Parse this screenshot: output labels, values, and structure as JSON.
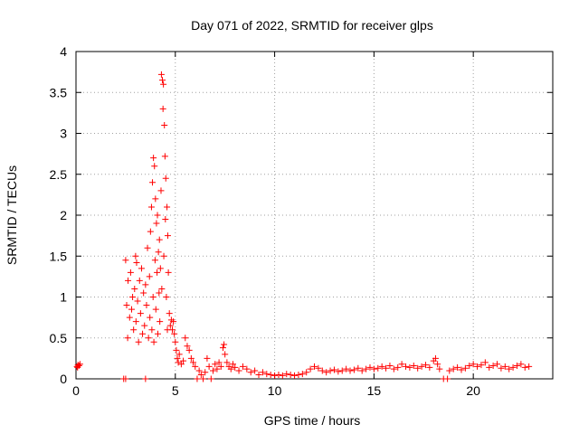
{
  "chart_data": {
    "type": "scatter",
    "title": "Day 071 of 2022, SRMTID for receiver glps",
    "xlabel": "GPS time / hours",
    "ylabel": "SRMTID / TECUs",
    "xlim": [
      0,
      24
    ],
    "ylim": [
      0,
      4
    ],
    "x_ticks": [
      0,
      5,
      10,
      15,
      20
    ],
    "x_tick_labels": [
      "0",
      "5",
      "10",
      "15",
      "20"
    ],
    "y_ticks": [
      0,
      0.5,
      1,
      1.5,
      2,
      2.5,
      3,
      3.5,
      4
    ],
    "y_tick_labels": [
      "0",
      "0.5",
      "1",
      "1.5",
      "2",
      "2.5",
      "3",
      "3.5",
      "4"
    ],
    "grid": true,
    "marker": "+",
    "color": "#ff0000",
    "series": [
      {
        "name": "SRMTID",
        "points": [
          [
            0.05,
            0.15
          ],
          [
            0.1,
            0.17
          ],
          [
            0.15,
            0.16
          ],
          [
            0.2,
            0.18
          ],
          [
            0.08,
            0.14
          ],
          [
            2.4,
            0.0
          ],
          [
            2.5,
            0.0
          ],
          [
            2.5,
            1.45
          ],
          [
            2.55,
            0.9
          ],
          [
            2.6,
            0.5
          ],
          [
            2.62,
            1.2
          ],
          [
            2.7,
            0.75
          ],
          [
            2.75,
            1.3
          ],
          [
            2.8,
            0.85
          ],
          [
            2.85,
            1.0
          ],
          [
            2.9,
            0.6
          ],
          [
            2.95,
            1.1
          ],
          [
            3.0,
            1.5
          ],
          [
            3.02,
            0.7
          ],
          [
            3.05,
            1.42
          ],
          [
            3.1,
            0.95
          ],
          [
            3.15,
            0.45
          ],
          [
            3.2,
            1.2
          ],
          [
            3.25,
            0.8
          ],
          [
            3.3,
            1.35
          ],
          [
            3.35,
            0.55
          ],
          [
            3.4,
            1.05
          ],
          [
            3.45,
            0.65
          ],
          [
            3.5,
            1.15
          ],
          [
            3.5,
            0.0
          ],
          [
            3.55,
            0.9
          ],
          [
            3.6,
            1.6
          ],
          [
            3.65,
            0.5
          ],
          [
            3.7,
            1.25
          ],
          [
            3.72,
            0.75
          ],
          [
            3.75,
            1.8
          ],
          [
            3.8,
            2.1
          ],
          [
            3.82,
            0.6
          ],
          [
            3.85,
            2.4
          ],
          [
            3.88,
            1.0
          ],
          [
            3.9,
            2.7
          ],
          [
            3.92,
            0.45
          ],
          [
            3.95,
            2.6
          ],
          [
            3.98,
            1.45
          ],
          [
            4.0,
            2.2
          ],
          [
            4.02,
            0.85
          ],
          [
            4.05,
            1.9
          ],
          [
            4.08,
            1.3
          ],
          [
            4.1,
            2.0
          ],
          [
            4.12,
            0.55
          ],
          [
            4.15,
            1.55
          ],
          [
            4.18,
            1.05
          ],
          [
            4.2,
            1.7
          ],
          [
            4.22,
            0.7
          ],
          [
            4.25,
            1.35
          ],
          [
            4.28,
            2.3
          ],
          [
            4.3,
            3.72
          ],
          [
            4.32,
            1.1
          ],
          [
            4.35,
            3.65
          ],
          [
            4.38,
            3.3
          ],
          [
            4.4,
            3.6
          ],
          [
            4.42,
            1.5
          ],
          [
            4.45,
            3.1
          ],
          [
            4.48,
            2.72
          ],
          [
            4.5,
            1.95
          ],
          [
            4.52,
            2.45
          ],
          [
            4.55,
            1.0
          ],
          [
            4.58,
            2.1
          ],
          [
            4.6,
            0.6
          ],
          [
            4.62,
            1.75
          ],
          [
            4.65,
            1.3
          ],
          [
            4.7,
            0.8
          ],
          [
            4.75,
            0.65
          ],
          [
            4.8,
            0.72
          ],
          [
            4.85,
            0.6
          ],
          [
            4.9,
            0.7
          ],
          [
            4.95,
            0.55
          ],
          [
            5.0,
            0.45
          ],
          [
            5.05,
            0.35
          ],
          [
            5.1,
            0.25
          ],
          [
            5.15,
            0.2
          ],
          [
            5.2,
            0.3
          ],
          [
            5.3,
            0.18
          ],
          [
            5.4,
            0.22
          ],
          [
            5.5,
            0.5
          ],
          [
            5.6,
            0.4
          ],
          [
            5.7,
            0.35
          ],
          [
            5.8,
            0.25
          ],
          [
            5.9,
            0.2
          ],
          [
            6.0,
            0.15
          ],
          [
            6.1,
            0.0
          ],
          [
            6.2,
            0.1
          ],
          [
            6.3,
            0.05
          ],
          [
            6.4,
            0.0
          ],
          [
            6.5,
            0.08
          ],
          [
            6.6,
            0.25
          ],
          [
            6.7,
            0.15
          ],
          [
            6.8,
            0.0
          ],
          [
            6.9,
            0.1
          ],
          [
            7.0,
            0.18
          ],
          [
            7.1,
            0.12
          ],
          [
            7.2,
            0.2
          ],
          [
            7.3,
            0.15
          ],
          [
            7.4,
            0.38
          ],
          [
            7.45,
            0.42
          ],
          [
            7.5,
            0.3
          ],
          [
            7.6,
            0.2
          ],
          [
            7.7,
            0.15
          ],
          [
            7.8,
            0.12
          ],
          [
            7.9,
            0.18
          ],
          [
            8.0,
            0.14
          ],
          [
            8.2,
            0.1
          ],
          [
            8.4,
            0.15
          ],
          [
            8.6,
            0.12
          ],
          [
            8.8,
            0.08
          ],
          [
            9.0,
            0.1
          ],
          [
            9.2,
            0.05
          ],
          [
            9.4,
            0.08
          ],
          [
            9.6,
            0.06
          ],
          [
            9.8,
            0.05
          ],
          [
            10.0,
            0.04
          ],
          [
            10.2,
            0.05
          ],
          [
            10.4,
            0.04
          ],
          [
            10.6,
            0.06
          ],
          [
            10.8,
            0.05
          ],
          [
            11.0,
            0.04
          ],
          [
            11.2,
            0.05
          ],
          [
            11.4,
            0.06
          ],
          [
            11.6,
            0.08
          ],
          [
            11.8,
            0.12
          ],
          [
            12.0,
            0.15
          ],
          [
            12.2,
            0.13
          ],
          [
            12.4,
            0.1
          ],
          [
            12.6,
            0.08
          ],
          [
            12.8,
            0.1
          ],
          [
            13.0,
            0.11
          ],
          [
            13.2,
            0.09
          ],
          [
            13.4,
            0.1
          ],
          [
            13.6,
            0.12
          ],
          [
            13.8,
            0.1
          ],
          [
            14.0,
            0.11
          ],
          [
            14.2,
            0.13
          ],
          [
            14.4,
            0.1
          ],
          [
            14.6,
            0.12
          ],
          [
            14.8,
            0.14
          ],
          [
            15.0,
            0.12
          ],
          [
            15.2,
            0.13
          ],
          [
            15.4,
            0.15
          ],
          [
            15.6,
            0.13
          ],
          [
            15.8,
            0.16
          ],
          [
            16.0,
            0.12
          ],
          [
            16.2,
            0.14
          ],
          [
            16.4,
            0.18
          ],
          [
            16.6,
            0.15
          ],
          [
            16.8,
            0.14
          ],
          [
            17.0,
            0.16
          ],
          [
            17.2,
            0.13
          ],
          [
            17.4,
            0.15
          ],
          [
            17.6,
            0.17
          ],
          [
            17.8,
            0.14
          ],
          [
            18.0,
            0.22
          ],
          [
            18.1,
            0.25
          ],
          [
            18.2,
            0.18
          ],
          [
            18.3,
            0.12
          ],
          [
            18.5,
            0.0
          ],
          [
            18.7,
            0.0
          ],
          [
            18.8,
            0.1
          ],
          [
            19.0,
            0.12
          ],
          [
            19.2,
            0.14
          ],
          [
            19.4,
            0.11
          ],
          [
            19.6,
            0.13
          ],
          [
            19.8,
            0.16
          ],
          [
            20.0,
            0.18
          ],
          [
            20.2,
            0.15
          ],
          [
            20.4,
            0.17
          ],
          [
            20.6,
            0.2
          ],
          [
            20.8,
            0.14
          ],
          [
            21.0,
            0.16
          ],
          [
            21.2,
            0.18
          ],
          [
            21.4,
            0.13
          ],
          [
            21.6,
            0.15
          ],
          [
            21.8,
            0.12
          ],
          [
            22.0,
            0.14
          ],
          [
            22.2,
            0.16
          ],
          [
            22.4,
            0.18
          ],
          [
            22.6,
            0.14
          ],
          [
            22.8,
            0.15
          ]
        ]
      }
    ]
  }
}
